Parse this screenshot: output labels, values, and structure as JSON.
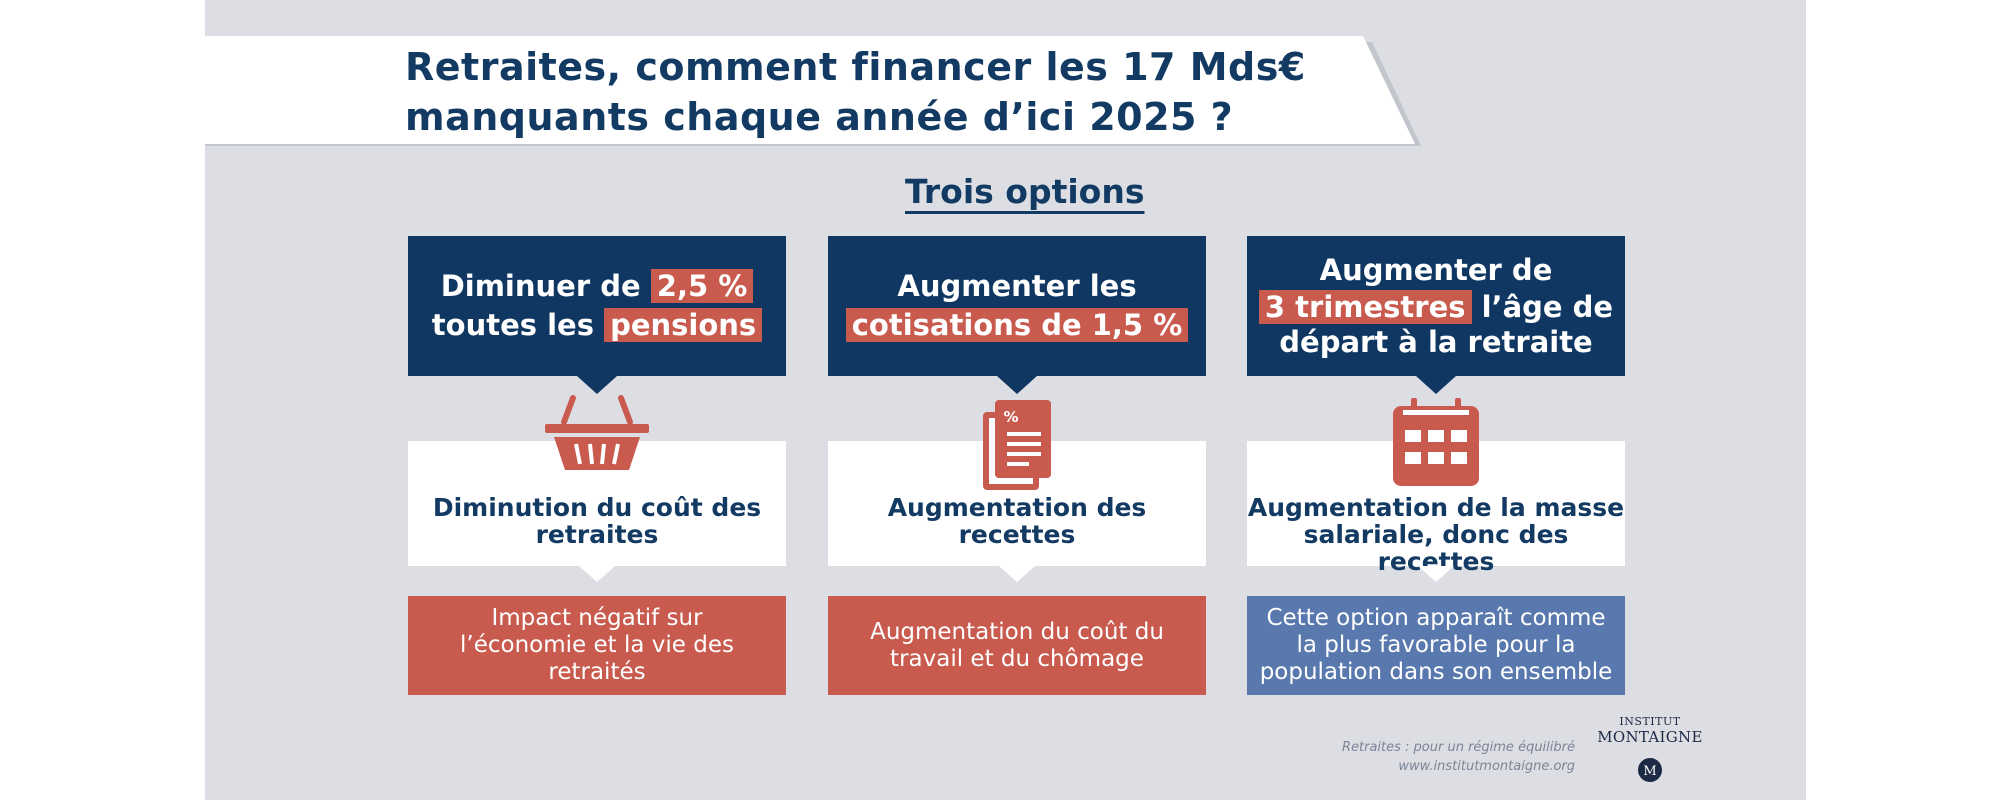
{
  "title": {
    "line1": "Retraites, comment financer les 17 Mds€",
    "line2": "manquants chaque année d’ici 2025 ?"
  },
  "subtitle": "Trois options",
  "options": [
    {
      "top": {
        "l1_a": "Diminuer de ",
        "l1_hl": "2,5 %",
        "l2_a": "toutes les ",
        "l2_hl": "pensions"
      },
      "icon": "basket-icon",
      "consequence": {
        "l1": "Diminution du coût des",
        "l2": "retraites"
      },
      "impact": {
        "l1": "Impact négatif sur",
        "l2": "l’économie et la vie des",
        "l3": "retraités"
      },
      "impact_color": "#c85a4e"
    },
    {
      "top": {
        "l1": "Augmenter les",
        "l2_hl": "cotisations de 1,5 %"
      },
      "icon": "percent-document-icon",
      "consequence": {
        "l1": "Augmentation des",
        "l2": "recettes"
      },
      "impact": {
        "l1": "Augmentation du coût du",
        "l2": "travail et du chômage"
      },
      "impact_color": "#c85a4e"
    },
    {
      "top": {
        "l1": "Augmenter de",
        "l2_hl": "3 trimestres",
        "l2_b": " l’âge de",
        "l3": "départ à la retraite"
      },
      "icon": "calendar-icon",
      "consequence": {
        "l1": "Augmentation de la masse",
        "l2": "salariale, donc des recettes"
      },
      "impact": {
        "l1": "Cette option apparaît comme",
        "l2": "la plus favorable pour la",
        "l3": "population dans son ensemble"
      },
      "impact_color": "#5878ae"
    }
  ],
  "footer": {
    "line1": "Retraites : pour un régime équilibré",
    "line2": "www.institutmontaigne.org"
  },
  "logo": {
    "line1": "INSTITUT",
    "line2": "MONTAIGNE",
    "mark": "M"
  },
  "colors": {
    "navy": "#0f3761",
    "red": "#c85a4e",
    "blue": "#5878ae",
    "panel": "#dcdee3"
  }
}
